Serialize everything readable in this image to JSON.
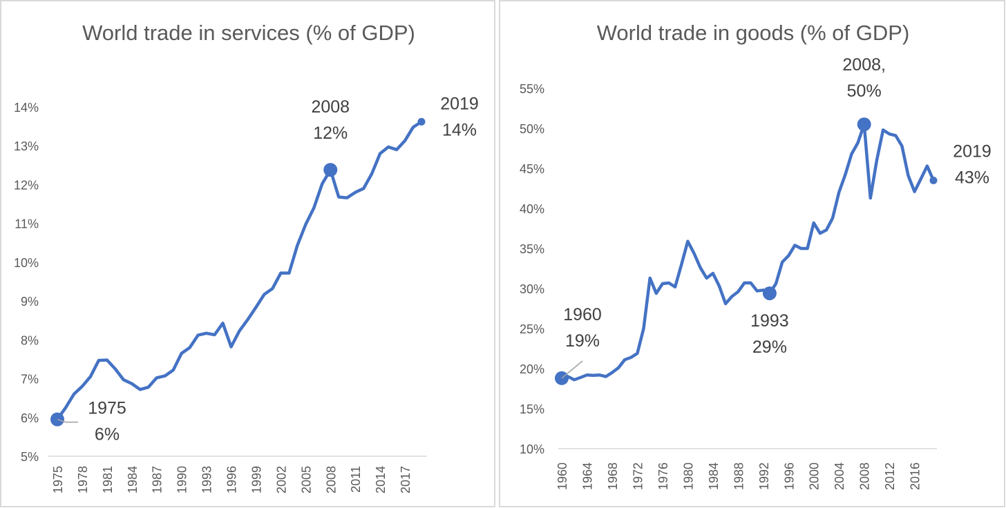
{
  "chart_data": [
    {
      "type": "line",
      "title": "World trade in services (% of GDP)",
      "xlabel": "",
      "ylabel": "",
      "ylim": [
        5,
        14
      ],
      "yticks": [
        "5%",
        "6%",
        "7%",
        "8%",
        "9%",
        "10%",
        "11%",
        "12%",
        "13%",
        "14%"
      ],
      "xticks": [
        "1975",
        "1978",
        "1981",
        "1984",
        "1987",
        "1990",
        "1993",
        "1996",
        "1999",
        "2002",
        "2005",
        "2008",
        "2011",
        "2014",
        "2017"
      ],
      "grid": false,
      "color": "#4472C4",
      "x": [
        1975,
        1976,
        1977,
        1978,
        1979,
        1980,
        1981,
        1982,
        1983,
        1984,
        1985,
        1986,
        1987,
        1988,
        1989,
        1990,
        1991,
        1992,
        1993,
        1994,
        1995,
        1996,
        1997,
        1998,
        1999,
        2000,
        2001,
        2002,
        2003,
        2004,
        2005,
        2006,
        2007,
        2008,
        2009,
        2010,
        2011,
        2012,
        2013,
        2014,
        2015,
        2016,
        2017,
        2018,
        2019
      ],
      "values": [
        5.95,
        6.25,
        6.6,
        6.8,
        7.05,
        7.47,
        7.48,
        7.25,
        6.97,
        6.87,
        6.72,
        6.78,
        7.02,
        7.07,
        7.22,
        7.65,
        7.8,
        8.12,
        8.17,
        8.13,
        8.43,
        7.82,
        8.23,
        8.52,
        8.84,
        9.17,
        9.32,
        9.72,
        9.72,
        10.43,
        10.97,
        11.4,
        12.02,
        12.38,
        11.68,
        11.66,
        11.8,
        11.9,
        12.28,
        12.8,
        12.97,
        12.9,
        13.13,
        13.48,
        13.62
      ],
      "annotations": [
        {
          "x": 1975,
          "lines": [
            "1975",
            "6%"
          ],
          "marker": "large"
        },
        {
          "x": 2008,
          "lines": [
            "2008",
            "12%"
          ],
          "marker": "large"
        },
        {
          "x": 2019,
          "lines": [
            "2019",
            "14%"
          ],
          "marker": "small"
        }
      ]
    },
    {
      "type": "line",
      "title": "World trade in goods (% of GDP)",
      "xlabel": "",
      "ylabel": "",
      "ylim": [
        10,
        55
      ],
      "yticks": [
        "10%",
        "15%",
        "20%",
        "25%",
        "30%",
        "35%",
        "40%",
        "45%",
        "50%",
        "55%"
      ],
      "xticks": [
        "1960",
        "1964",
        "1968",
        "1972",
        "1976",
        "1980",
        "1984",
        "1988",
        "1992",
        "1996",
        "2000",
        "2004",
        "2008",
        "2012",
        "2016"
      ],
      "grid": false,
      "color": "#4472C4",
      "x": [
        1960,
        1961,
        1962,
        1963,
        1964,
        1965,
        1966,
        1967,
        1968,
        1969,
        1970,
        1971,
        1972,
        1973,
        1974,
        1975,
        1976,
        1977,
        1978,
        1979,
        1980,
        1981,
        1982,
        1983,
        1984,
        1985,
        1986,
        1987,
        1988,
        1989,
        1990,
        1991,
        1992,
        1993,
        1994,
        1995,
        1996,
        1997,
        1998,
        1999,
        2000,
        2001,
        2002,
        2003,
        2004,
        2005,
        2006,
        2007,
        2008,
        2009,
        2010,
        2011,
        2012,
        2013,
        2014,
        2015,
        2016,
        2017,
        2018,
        2019
      ],
      "values": [
        18.8,
        19.0,
        18.6,
        18.9,
        19.2,
        19.15,
        19.2,
        19.0,
        19.5,
        20.1,
        21.1,
        21.4,
        21.9,
        25.0,
        31.3,
        29.4,
        30.6,
        30.7,
        30.2,
        33.0,
        35.9,
        34.4,
        32.6,
        31.3,
        31.9,
        30.3,
        28.1,
        29.0,
        29.6,
        30.7,
        30.7,
        29.7,
        29.8,
        29.4,
        30.6,
        33.3,
        34.1,
        35.4,
        35.0,
        35.0,
        38.2,
        36.9,
        37.3,
        38.8,
        42.0,
        44.2,
        46.8,
        48.2,
        50.5,
        41.3,
        46.0,
        49.8,
        49.3,
        49.1,
        47.8,
        44.1,
        42.1,
        43.7,
        45.3,
        43.5
      ],
      "annotations": [
        {
          "x": 1960,
          "lines": [
            "1960",
            "19%"
          ],
          "marker": "large"
        },
        {
          "x": 1993,
          "lines": [
            "1993",
            "29%"
          ],
          "marker": "large"
        },
        {
          "x": 2008,
          "lines": [
            "2008,",
            "50%"
          ],
          "marker": "large"
        },
        {
          "x": 2019,
          "lines": [
            "2019",
            "43%"
          ],
          "marker": "small"
        }
      ]
    }
  ]
}
